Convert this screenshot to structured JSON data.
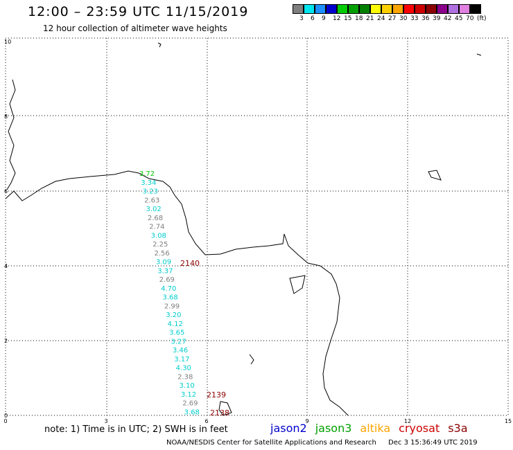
{
  "header": {
    "title": "12:00 – 23:59 UTC 11/15/2019",
    "subtitle": "12 hour collection of altimeter wave heights"
  },
  "legend": {
    "colors": [
      "#7f7f7f",
      "#00e5ee",
      "#1e90ff",
      "#0000cd",
      "#00cd00",
      "#00a000",
      "#008000",
      "#ffff00",
      "#ffd000",
      "#ffa500",
      "#ff0000",
      "#cd0000",
      "#8b0000",
      "#8b008b",
      "#b070e0",
      "#e080e0",
      "#000000"
    ],
    "labels": [
      "3",
      "6",
      "9",
      "12",
      "15",
      "18",
      "21",
      "24",
      "27",
      "30",
      "33",
      "36",
      "39",
      "42",
      "45",
      "70"
    ],
    "unit": "(ft)"
  },
  "axes": {
    "x_ticks": [
      "0",
      "3",
      "6",
      "9",
      "12",
      "15"
    ],
    "y_ticks": [
      "0",
      "2",
      "4",
      "6",
      "8",
      "10"
    ]
  },
  "passes": [
    {
      "label": "2140",
      "color": "#8b0000"
    },
    {
      "label": "2139",
      "color": "#8b0000"
    },
    {
      "label": "2138",
      "color": "#8b0000"
    }
  ],
  "wave_heights": [
    {
      "v": "3.72",
      "c": "#00cd00"
    },
    {
      "v": "3.34",
      "c": "#00cccc"
    },
    {
      "v": "3.23",
      "c": "#00cccc"
    },
    {
      "v": "2.63",
      "c": "#7f7f7f"
    },
    {
      "v": "3.02",
      "c": "#00cccc"
    },
    {
      "v": "2.68",
      "c": "#7f7f7f"
    },
    {
      "v": "2.74",
      "c": "#7f7f7f"
    },
    {
      "v": "3.08",
      "c": "#00cccc"
    },
    {
      "v": "2.25",
      "c": "#7f7f7f"
    },
    {
      "v": "2.56",
      "c": "#7f7f7f"
    },
    {
      "v": "3.09",
      "c": "#00cccc"
    },
    {
      "v": "3.37",
      "c": "#00cccc"
    },
    {
      "v": "2.69",
      "c": "#7f7f7f"
    },
    {
      "v": "4.70",
      "c": "#00cccc"
    },
    {
      "v": "3.68",
      "c": "#00cccc"
    },
    {
      "v": "2.99",
      "c": "#7f7f7f"
    },
    {
      "v": "3.20",
      "c": "#00cccc"
    },
    {
      "v": "4.12",
      "c": "#00cccc"
    },
    {
      "v": "3.65",
      "c": "#00cccc"
    },
    {
      "v": "3.27",
      "c": "#00cccc"
    },
    {
      "v": "3.46",
      "c": "#00cccc"
    },
    {
      "v": "3.17",
      "c": "#00cccc"
    },
    {
      "v": "4.30",
      "c": "#00cccc"
    },
    {
      "v": "2.38",
      "c": "#7f7f7f"
    },
    {
      "v": "3.10",
      "c": "#00cccc"
    },
    {
      "v": "3.12",
      "c": "#00cccc"
    },
    {
      "v": "2.69",
      "c": "#7f7f7f"
    },
    {
      "v": "3.68",
      "c": "#00cccc"
    }
  ],
  "note": "note: 1) Time is in UTC; 2) SWH is in feet",
  "satellites": [
    {
      "name": "jason2",
      "color": "#0000cd"
    },
    {
      "name": "jason3",
      "color": "#00a000"
    },
    {
      "name": "altika",
      "color": "#ffa500"
    },
    {
      "name": "cryosat",
      "color": "#cd0000"
    },
    {
      "name": "s3a",
      "color": "#8b0000"
    }
  ],
  "footer": {
    "agency": "NOAA/NESDIS Center for Satellite Applications and Research",
    "timestamp": "Dec  3 15:36:49 UTC 2019"
  }
}
